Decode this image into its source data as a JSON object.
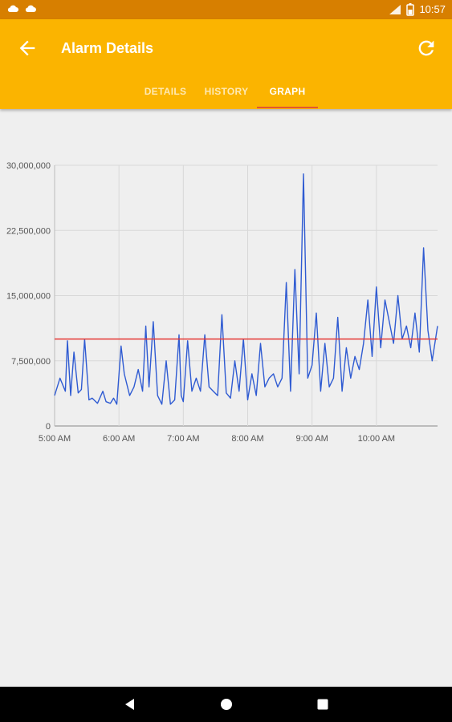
{
  "status_bar": {
    "time": "10:57",
    "left_icons": [
      "cloud-icon",
      "cloud-icon"
    ],
    "right_icons": [
      "wifi-icon",
      "battery-icon"
    ]
  },
  "appbar": {
    "title": "Alarm Details",
    "back_icon": "arrow-left-icon",
    "refresh_icon": "refresh-icon",
    "background_color": "#fbb400"
  },
  "tabs": [
    {
      "label": "DETAILS",
      "active": false
    },
    {
      "label": "HISTORY",
      "active": false
    },
    {
      "label": "GRAPH",
      "active": true
    }
  ],
  "chart_data": {
    "type": "line",
    "title": "",
    "xlabel": "",
    "ylabel": "",
    "x_ticks": [
      "5:00 AM",
      "6:00 AM",
      "7:00 AM",
      "8:00 AM",
      "9:00 AM",
      "10:00 AM"
    ],
    "y_ticks": [
      "0",
      "7,500,000",
      "15,000,000",
      "22,500,000",
      "30,000,000"
    ],
    "ylim": [
      0,
      30000000
    ],
    "x_unit": "minutes",
    "xlim": [
      0,
      357
    ],
    "grid": true,
    "threshold": {
      "value": 10000000,
      "color": "#e53935"
    },
    "series": [
      {
        "color": "#2f5bd2",
        "x": [
          0,
          5,
          10,
          12,
          15,
          18,
          22,
          25,
          28,
          32,
          35,
          40,
          45,
          48,
          52,
          55,
          58,
          62,
          65,
          70,
          74,
          78,
          82,
          85,
          88,
          92,
          96,
          100,
          104,
          108,
          112,
          116,
          118,
          120,
          124,
          128,
          132,
          136,
          140,
          144,
          148,
          152,
          156,
          160,
          164,
          168,
          172,
          176,
          180,
          184,
          188,
          192,
          196,
          200,
          204,
          208,
          212,
          216,
          220,
          224,
          228,
          232,
          236,
          240,
          244,
          248,
          252,
          256,
          260,
          264,
          268,
          272,
          276,
          280,
          284,
          288,
          292,
          296,
          300,
          304,
          308,
          312,
          316,
          320,
          324,
          328,
          332,
          336,
          340,
          344,
          348,
          352,
          357
        ],
        "values": [
          3500000,
          5500000,
          4000000,
          9800000,
          3500000,
          8500000,
          3800000,
          4200000,
          10000000,
          3000000,
          3200000,
          2600000,
          4000000,
          2800000,
          2600000,
          3200000,
          2500000,
          9200000,
          6000000,
          3500000,
          4500000,
          6500000,
          4000000,
          11500000,
          4500000,
          12000000,
          3500000,
          2500000,
          7500000,
          2500000,
          3000000,
          10500000,
          3500000,
          2800000,
          9800000,
          4000000,
          5500000,
          4000000,
          10500000,
          4500000,
          4000000,
          3500000,
          12800000,
          3800000,
          3200000,
          7500000,
          4000000,
          10000000,
          3000000,
          6000000,
          3500000,
          9500000,
          4500000,
          5500000,
          6000000,
          4500000,
          5500000,
          16500000,
          4000000,
          18000000,
          6000000,
          29000000,
          5500000,
          7000000,
          13000000,
          4000000,
          9500000,
          4500000,
          5500000,
          12500000,
          4000000,
          9000000,
          5500000,
          8000000,
          6500000,
          9500000,
          14500000,
          8000000,
          16000000,
          9000000,
          14500000,
          12000000,
          9500000,
          15000000,
          10000000,
          11500000,
          9000000,
          13000000,
          8500000,
          20500000,
          11000000,
          7500000,
          11500000
        ]
      }
    ]
  },
  "nav_bar": {
    "icons": [
      "back-triangle-icon",
      "home-circle-icon",
      "recents-square-icon"
    ]
  }
}
